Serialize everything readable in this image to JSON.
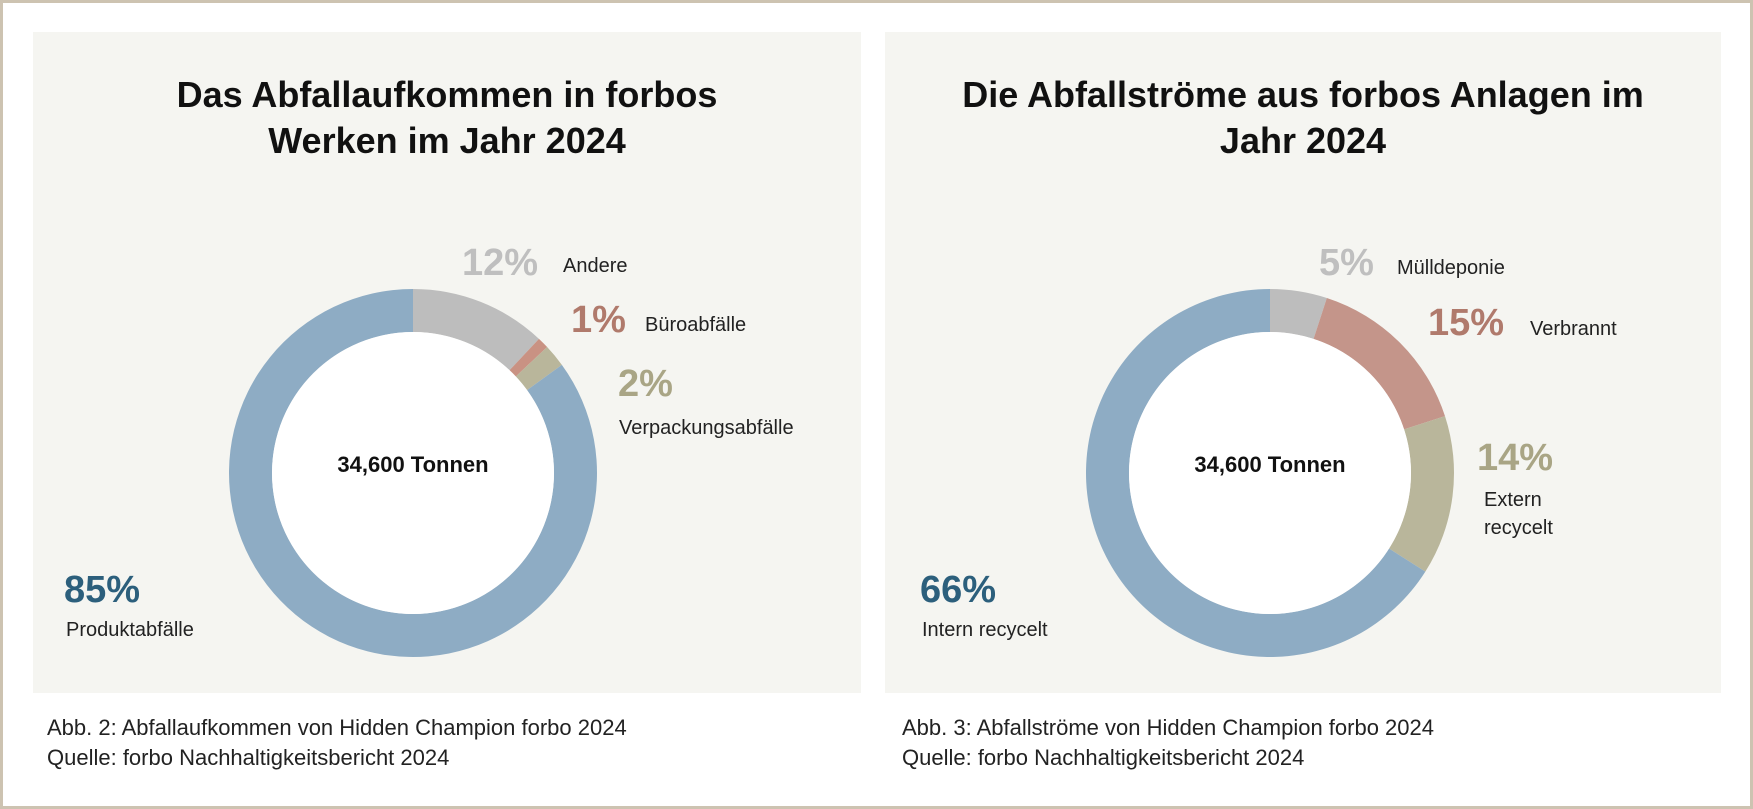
{
  "chart_data": [
    {
      "type": "pie",
      "title": "Das Abfallaufkommen in forbos Werken im Jahr 2024",
      "center_label": "34,600 Tonnen",
      "categories": [
        "Andere",
        "Büroabfälle",
        "Verpackungsabfälle",
        "Produktabfälle"
      ],
      "values": [
        12,
        1,
        2,
        85
      ],
      "labels": [
        "12%",
        "1%",
        "2%",
        "85%"
      ],
      "colors": [
        "#bdbdbd",
        "#c99283",
        "#b9b69b",
        "#8eacc4"
      ],
      "label_colors": [
        "#bfbfbf",
        "#b07a6c",
        "#a9a585",
        "#2c5f7c"
      ],
      "caption": "Abb. 2: Abfallaufkommen von Hidden Champion forbo 2024",
      "source": "Quelle: forbo Nachhaltigkeitsbericht 2024"
    },
    {
      "type": "pie",
      "title": "Die Abfallströme aus forbos Anlagen im Jahr 2024",
      "center_label": "34,600 Tonnen",
      "categories": [
        "Mülldeponie",
        "Verbrannt",
        "Extern recycelt",
        "Intern recycelt"
      ],
      "values": [
        5,
        15,
        14,
        66
      ],
      "labels": [
        "5%",
        "15%",
        "14%",
        "66%"
      ],
      "colors": [
        "#bdbdbd",
        "#c4958a",
        "#b9b69b",
        "#8eacc4"
      ],
      "label_colors": [
        "#bfbfbf",
        "#b07a6c",
        "#a9a585",
        "#2c5f7c"
      ],
      "caption": "Abb. 3: Abfallströme von Hidden Champion forbo 2024",
      "source": "Quelle: forbo Nachhaltigkeitsbericht 2024"
    }
  ]
}
